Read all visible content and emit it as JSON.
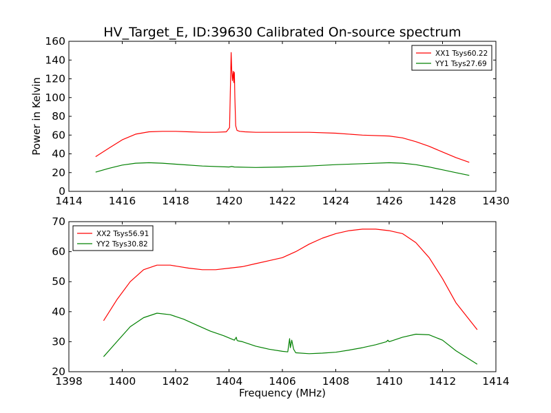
{
  "chart_data": [
    {
      "type": "line",
      "title": "HV_Target_E, ID:39630 Calibrated On-source spectrum",
      "xlabel": "",
      "ylabel": "Power in Kelvin",
      "xlim": [
        1414,
        1430
      ],
      "ylim": [
        0,
        160
      ],
      "xticks": [
        "1414",
        "1416",
        "1418",
        "1420",
        "1422",
        "1424",
        "1426",
        "1428",
        "1430"
      ],
      "yticks": [
        "0",
        "20",
        "40",
        "60",
        "80",
        "100",
        "120",
        "140",
        "160"
      ],
      "legend_position": "top-right",
      "grid": false,
      "series": [
        {
          "name": "XX1 Tsys60.22",
          "color": "#ff0000",
          "x": [
            1415.0,
            1415.5,
            1416.0,
            1416.5,
            1417.0,
            1417.5,
            1418.0,
            1418.5,
            1419.0,
            1419.5,
            1419.9,
            1420.02,
            1420.08,
            1420.1,
            1420.13,
            1420.16,
            1420.18,
            1420.2,
            1420.22,
            1420.25,
            1420.3,
            1420.4,
            1420.6,
            1421.0,
            1422.0,
            1423.0,
            1424.0,
            1425.0,
            1426.0,
            1426.5,
            1427.0,
            1427.5,
            1428.0,
            1428.5,
            1429.0
          ],
          "y": [
            37,
            46,
            55,
            61,
            63.5,
            64,
            64,
            63.5,
            63,
            63,
            63.5,
            68,
            148,
            130,
            118,
            128,
            116,
            127,
            100,
            70,
            65,
            64,
            63.5,
            63,
            63,
            63,
            62,
            60,
            59,
            57,
            53,
            48,
            42,
            36,
            31
          ]
        },
        {
          "name": "YY1 Tsys27.69",
          "color": "#008000",
          "x": [
            1415.0,
            1415.5,
            1416.0,
            1416.5,
            1417.0,
            1417.5,
            1418.0,
            1419.0,
            1420.0,
            1420.1,
            1420.2,
            1421.0,
            1422.0,
            1423.0,
            1424.0,
            1425.0,
            1426.0,
            1426.5,
            1427.0,
            1427.5,
            1428.0,
            1428.5,
            1429.0
          ],
          "y": [
            20.5,
            24.5,
            28,
            30,
            30.5,
            30,
            29,
            27,
            26,
            26.5,
            26,
            25.5,
            26,
            27,
            28.5,
            29.5,
            30.5,
            30,
            28.5,
            26,
            23,
            20,
            17
          ]
        }
      ]
    },
    {
      "type": "line",
      "title": "",
      "xlabel": "Frequency (MHz)",
      "ylabel": "",
      "xlim": [
        1398,
        1414
      ],
      "ylim": [
        20,
        70
      ],
      "xticks": [
        "1398",
        "1400",
        "1402",
        "1404",
        "1406",
        "1408",
        "1410",
        "1412",
        "1414"
      ],
      "yticks": [
        "20",
        "30",
        "40",
        "50",
        "60",
        "70"
      ],
      "legend_position": "top-left",
      "grid": false,
      "series": [
        {
          "name": "XX2 Tsys56.91",
          "color": "#ff0000",
          "x": [
            1399.3,
            1399.8,
            1400.3,
            1400.8,
            1401.3,
            1401.8,
            1402.5,
            1403.0,
            1403.5,
            1404.0,
            1404.5,
            1405.0,
            1405.5,
            1406.0,
            1406.5,
            1407.0,
            1407.5,
            1408.0,
            1408.5,
            1409.0,
            1409.5,
            1410.0,
            1410.5,
            1411.0,
            1411.5,
            1412.0,
            1412.5,
            1413.3
          ],
          "y": [
            37,
            44,
            50,
            54,
            55.5,
            55.5,
            54.5,
            54,
            54,
            54.5,
            55,
            56,
            57,
            58,
            60,
            62.5,
            64.5,
            66,
            67,
            67.5,
            67.5,
            67,
            66,
            63,
            58,
            51,
            43,
            34
          ]
        },
        {
          "name": "YY2 Tsys30.82",
          "color": "#008000",
          "x": [
            1399.3,
            1399.8,
            1400.3,
            1400.8,
            1401.3,
            1401.8,
            1402.3,
            1402.8,
            1403.3,
            1403.8,
            1404.2,
            1404.27,
            1404.3,
            1404.33,
            1404.5,
            1405.0,
            1405.5,
            1406.0,
            1406.2,
            1406.27,
            1406.3,
            1406.35,
            1406.42,
            1406.5,
            1407.0,
            1407.5,
            1408.0,
            1408.5,
            1409.0,
            1409.5,
            1409.9,
            1409.95,
            1410.0,
            1410.5,
            1411.0,
            1411.5,
            1412.0,
            1412.5,
            1413.3
          ],
          "y": [
            25,
            30,
            35,
            38,
            39.5,
            39,
            37.5,
            35.5,
            33.5,
            32,
            30.5,
            31.5,
            30.5,
            30.3,
            30,
            28.5,
            27.5,
            26.8,
            26.6,
            31,
            28,
            30.5,
            27.5,
            26.3,
            26,
            26.2,
            26.5,
            27.2,
            28,
            29,
            30,
            30.5,
            30,
            31.5,
            32.5,
            32.3,
            30.5,
            27,
            22.5
          ]
        }
      ]
    }
  ]
}
